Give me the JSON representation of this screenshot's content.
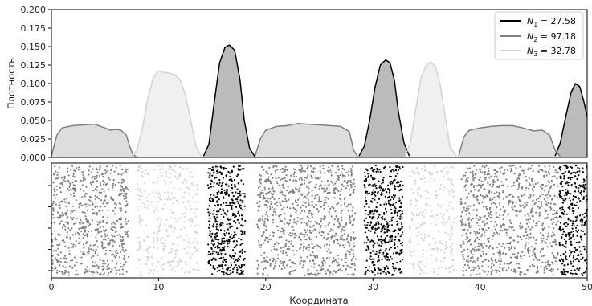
{
  "chart_data": [
    {
      "type": "area",
      "panel": "density",
      "ylabel": "Плотность",
      "xlabel": "",
      "xlim": [
        0,
        50
      ],
      "ylim": [
        0,
        0.2
      ],
      "yticks": [
        "0.000",
        "0.025",
        "0.050",
        "0.075",
        "0.100",
        "0.125",
        "0.150",
        "0.175",
        "0.200"
      ],
      "grid": false,
      "legend_position": "top-right",
      "legend": [
        {
          "sym": "N",
          "sub": "1",
          "value": "= 27.58",
          "color": "#000000"
        },
        {
          "sym": "N",
          "sub": "2",
          "value": "= 97.18",
          "color": "#808080"
        },
        {
          "sym": "N",
          "sub": "3",
          "value": "= 32.78",
          "color": "#d3d3d3"
        }
      ],
      "series": [
        {
          "legend_index": 0,
          "edge_color": "#000000",
          "fill_color": "#bbbbbb",
          "segments": [
            {
              "x": [
                14.2,
                14.7,
                15.2,
                15.7,
                16.2,
                16.6,
                17.1,
                17.6,
                18.0,
                18.5,
                19.0
              ],
              "y": [
                0.002,
                0.018,
                0.075,
                0.128,
                0.149,
                0.152,
                0.145,
                0.105,
                0.05,
                0.012,
                0.001
              ]
            },
            {
              "x": [
                28.7,
                29.2,
                29.7,
                30.2,
                30.7,
                31.2,
                31.6,
                32.0,
                32.4,
                32.9,
                33.4
              ],
              "y": [
                0.002,
                0.015,
                0.05,
                0.095,
                0.125,
                0.132,
                0.128,
                0.105,
                0.06,
                0.02,
                0.002
              ]
            },
            {
              "x": [
                47.0,
                47.5,
                48.0,
                48.5,
                48.9,
                49.3,
                49.7,
                50.0
              ],
              "y": [
                0.002,
                0.02,
                0.055,
                0.088,
                0.1,
                0.096,
                0.075,
                0.055
              ]
            }
          ]
        },
        {
          "legend_index": 1,
          "edge_color": "#808080",
          "fill_color": "#dddddd",
          "segments": [
            {
              "x": [
                0.0,
                0.5,
                1.0,
                2.0,
                3.0,
                4.0,
                5.0,
                5.5,
                6.0,
                6.5,
                7.0,
                7.3,
                7.6,
                8.0
              ],
              "y": [
                0.002,
                0.03,
                0.04,
                0.043,
                0.044,
                0.045,
                0.04,
                0.037,
                0.038,
                0.037,
                0.03,
                0.015,
                0.004,
                0.0
              ]
            },
            {
              "x": [
                19.0,
                19.5,
                20.0,
                21.0,
                22.0,
                23.0,
                24.0,
                25.0,
                26.0,
                27.0,
                27.8,
                28.2,
                28.6
              ],
              "y": [
                0.002,
                0.025,
                0.037,
                0.042,
                0.043,
                0.046,
                0.045,
                0.044,
                0.043,
                0.042,
                0.035,
                0.01,
                0.001
              ]
            },
            {
              "x": [
                38.0,
                38.5,
                39.0,
                40.0,
                41.0,
                42.0,
                43.0,
                44.0,
                45.0,
                45.8,
                46.5,
                47.0,
                47.5
              ],
              "y": [
                0.002,
                0.028,
                0.037,
                0.04,
                0.042,
                0.043,
                0.043,
                0.04,
                0.036,
                0.037,
                0.03,
                0.01,
                0.001
              ]
            }
          ]
        },
        {
          "legend_index": 2,
          "edge_color": "#d3d3d3",
          "fill_color": "#f0f0f0",
          "segments": [
            {
              "x": [
                7.5,
                8.0,
                8.5,
                9.0,
                9.5,
                10.0,
                10.5,
                11.0,
                11.5,
                12.0,
                12.5,
                13.0,
                13.5,
                14.0
              ],
              "y": [
                0.001,
                0.01,
                0.04,
                0.08,
                0.108,
                0.117,
                0.115,
                0.114,
                0.112,
                0.105,
                0.085,
                0.05,
                0.015,
                0.001
              ]
            },
            {
              "x": [
                33.0,
                33.5,
                34.0,
                34.5,
                35.0,
                35.4,
                35.8,
                36.2,
                36.7,
                37.2,
                37.8
              ],
              "y": [
                0.001,
                0.02,
                0.065,
                0.108,
                0.125,
                0.129,
                0.124,
                0.105,
                0.06,
                0.015,
                0.001
              ]
            }
          ]
        }
      ]
    },
    {
      "type": "scatter",
      "panel": "points",
      "xlabel": "Координата",
      "xlim": [
        0,
        50
      ],
      "xticks": [
        "0",
        "10",
        "20",
        "30",
        "40",
        "50"
      ],
      "ylim": [
        0,
        1
      ],
      "y_tick_count": 5,
      "grid": false,
      "series": [
        {
          "legend_index": 1,
          "color": "#808080",
          "x_ranges": [
            [
              0.0,
              7.2
            ],
            [
              19.2,
              28.4
            ],
            [
              38.2,
              47.3
            ]
          ]
        },
        {
          "legend_index": 2,
          "color": "#d3d3d3",
          "x_ranges": [
            [
              8.0,
              13.8
            ],
            [
              33.4,
              37.6
            ]
          ]
        },
        {
          "legend_index": 0,
          "color": "#000000",
          "x_ranges": [
            [
              14.6,
              18.1
            ],
            [
              29.2,
              32.8
            ],
            [
              47.4,
              50.0
            ]
          ]
        }
      ]
    }
  ]
}
